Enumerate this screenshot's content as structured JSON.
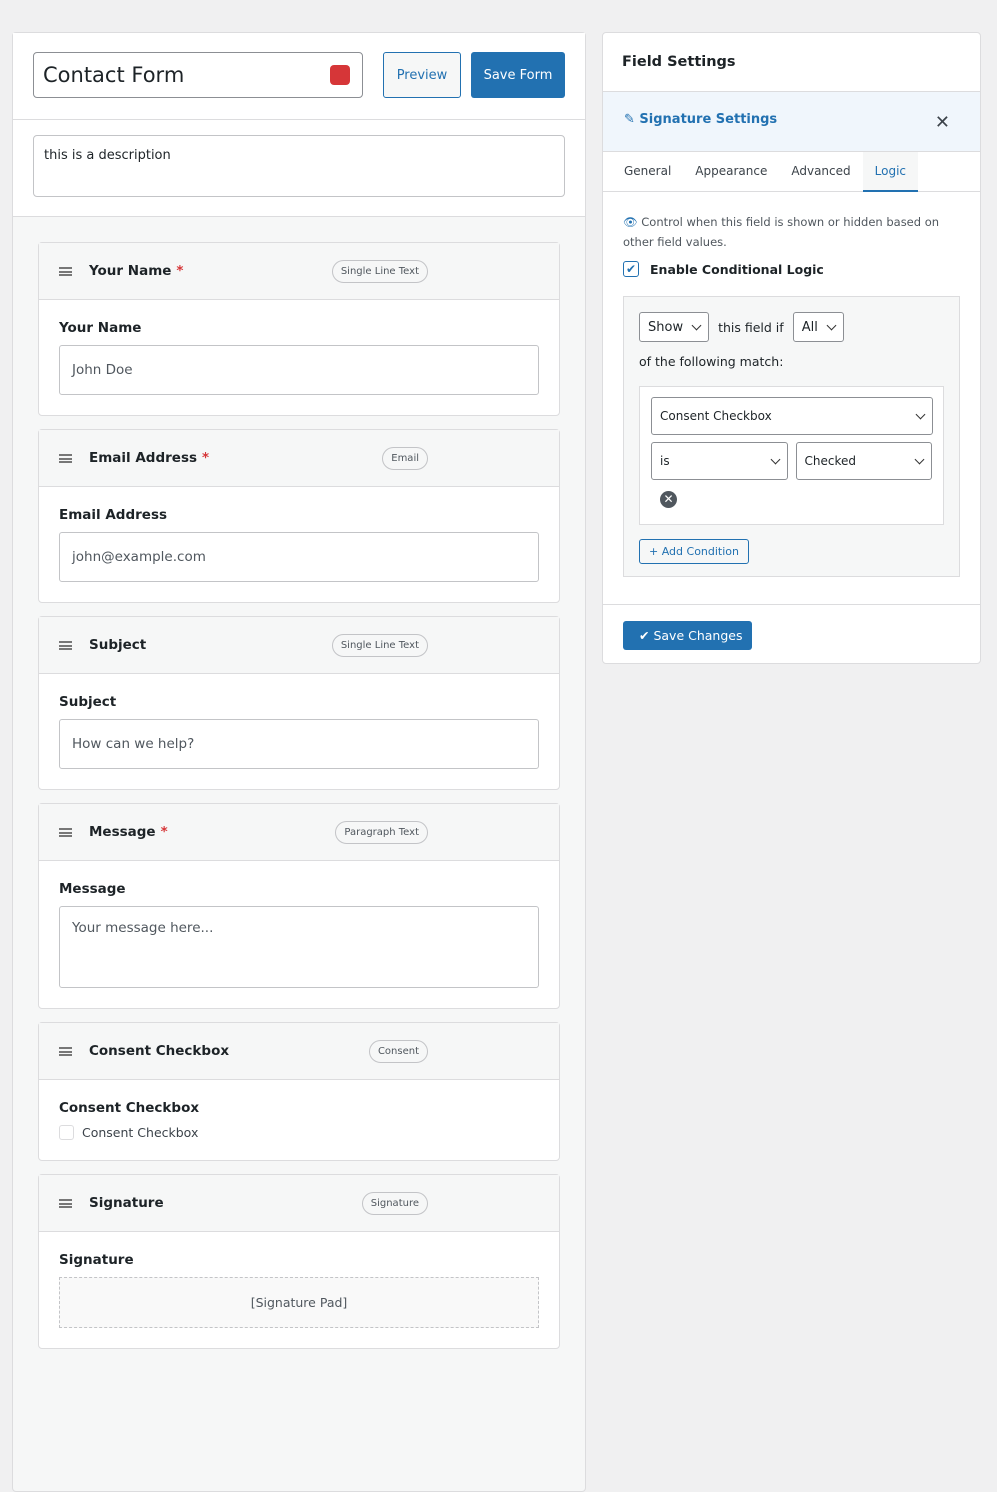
{
  "form": {
    "title": "Contact Form",
    "preview": "Preview",
    "save": "Save Form",
    "description": "this is a description",
    "fields": [
      {
        "header": "Your Name",
        "required_mark": "*",
        "type": "Single Line Text",
        "label": "Your Name",
        "placeholder": "John Doe"
      },
      {
        "header": "Email Address",
        "required_mark": "*",
        "type": "Email",
        "label": "Email Address",
        "placeholder": "john@example.com"
      },
      {
        "header": "Subject",
        "type": "Single Line Text",
        "label": "Subject",
        "placeholder": "How can we help?"
      },
      {
        "header": "Message",
        "required_mark": "*",
        "type": "Paragraph Text",
        "label": "Message",
        "textarea_placeholder": "Your message here..."
      },
      {
        "header": "Consent Checkbox",
        "type": "Consent",
        "label": "Consent Checkbox",
        "checkbox_text": "Consent Checkbox"
      },
      {
        "header": "Signature",
        "type": "Signature",
        "label": "Signature",
        "pad_text": "[Signature Pad]"
      }
    ]
  },
  "settings": {
    "title": "Field Settings",
    "section": "Signature Settings",
    "tabs": [
      "General",
      "Appearance",
      "Advanced",
      "Logic"
    ],
    "active_tab": 3,
    "logic": {
      "description": "Control when this field is shown or hidden based on other field values.",
      "enable_label": "Enable Conditional Logic",
      "enabled": true,
      "action": "Show",
      "connector": "this field if",
      "match": "All",
      "match_suffix": "of the following match:",
      "condition": {
        "field": "Consent Checkbox",
        "operator": "is",
        "value": "Checked"
      },
      "add_condition": "Add Condition"
    },
    "save": "Save Changes"
  }
}
